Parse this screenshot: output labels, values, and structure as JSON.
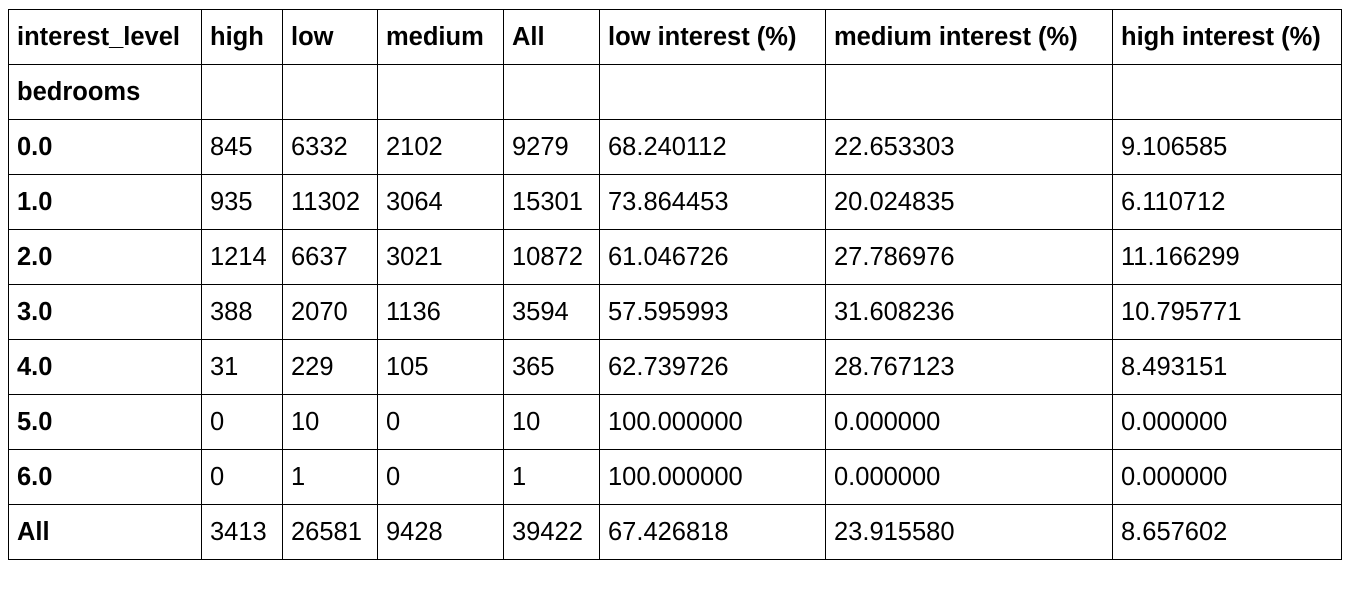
{
  "table": {
    "index_name": "interest_level",
    "columns": [
      "high",
      "low",
      "medium",
      "All",
      "low interest (%)",
      "medium interest (%)",
      "high interest (%)"
    ],
    "row_index_label": "bedrooms",
    "rows": [
      {
        "label": "0.0",
        "cells": [
          "845",
          "6332",
          "2102",
          "9279",
          "68.240112",
          "22.653303",
          "9.106585"
        ]
      },
      {
        "label": "1.0",
        "cells": [
          "935",
          "11302",
          "3064",
          "15301",
          "73.864453",
          "20.024835",
          "6.110712"
        ]
      },
      {
        "label": "2.0",
        "cells": [
          "1214",
          "6637",
          "3021",
          "10872",
          "61.046726",
          "27.786976",
          "11.166299"
        ]
      },
      {
        "label": "3.0",
        "cells": [
          "388",
          "2070",
          "1136",
          "3594",
          "57.595993",
          "31.608236",
          "10.795771"
        ]
      },
      {
        "label": "4.0",
        "cells": [
          "31",
          "229",
          "105",
          "365",
          "62.739726",
          "28.767123",
          "8.493151"
        ]
      },
      {
        "label": "5.0",
        "cells": [
          "0",
          "10",
          "0",
          "10",
          "100.000000",
          "0.000000",
          "0.000000"
        ]
      },
      {
        "label": "6.0",
        "cells": [
          "0",
          "1",
          "0",
          "1",
          "100.000000",
          "0.000000",
          "0.000000"
        ]
      },
      {
        "label": "All",
        "cells": [
          "3413",
          "26581",
          "9428",
          "39422",
          "67.426818",
          "23.915580",
          "8.657602"
        ]
      }
    ]
  }
}
